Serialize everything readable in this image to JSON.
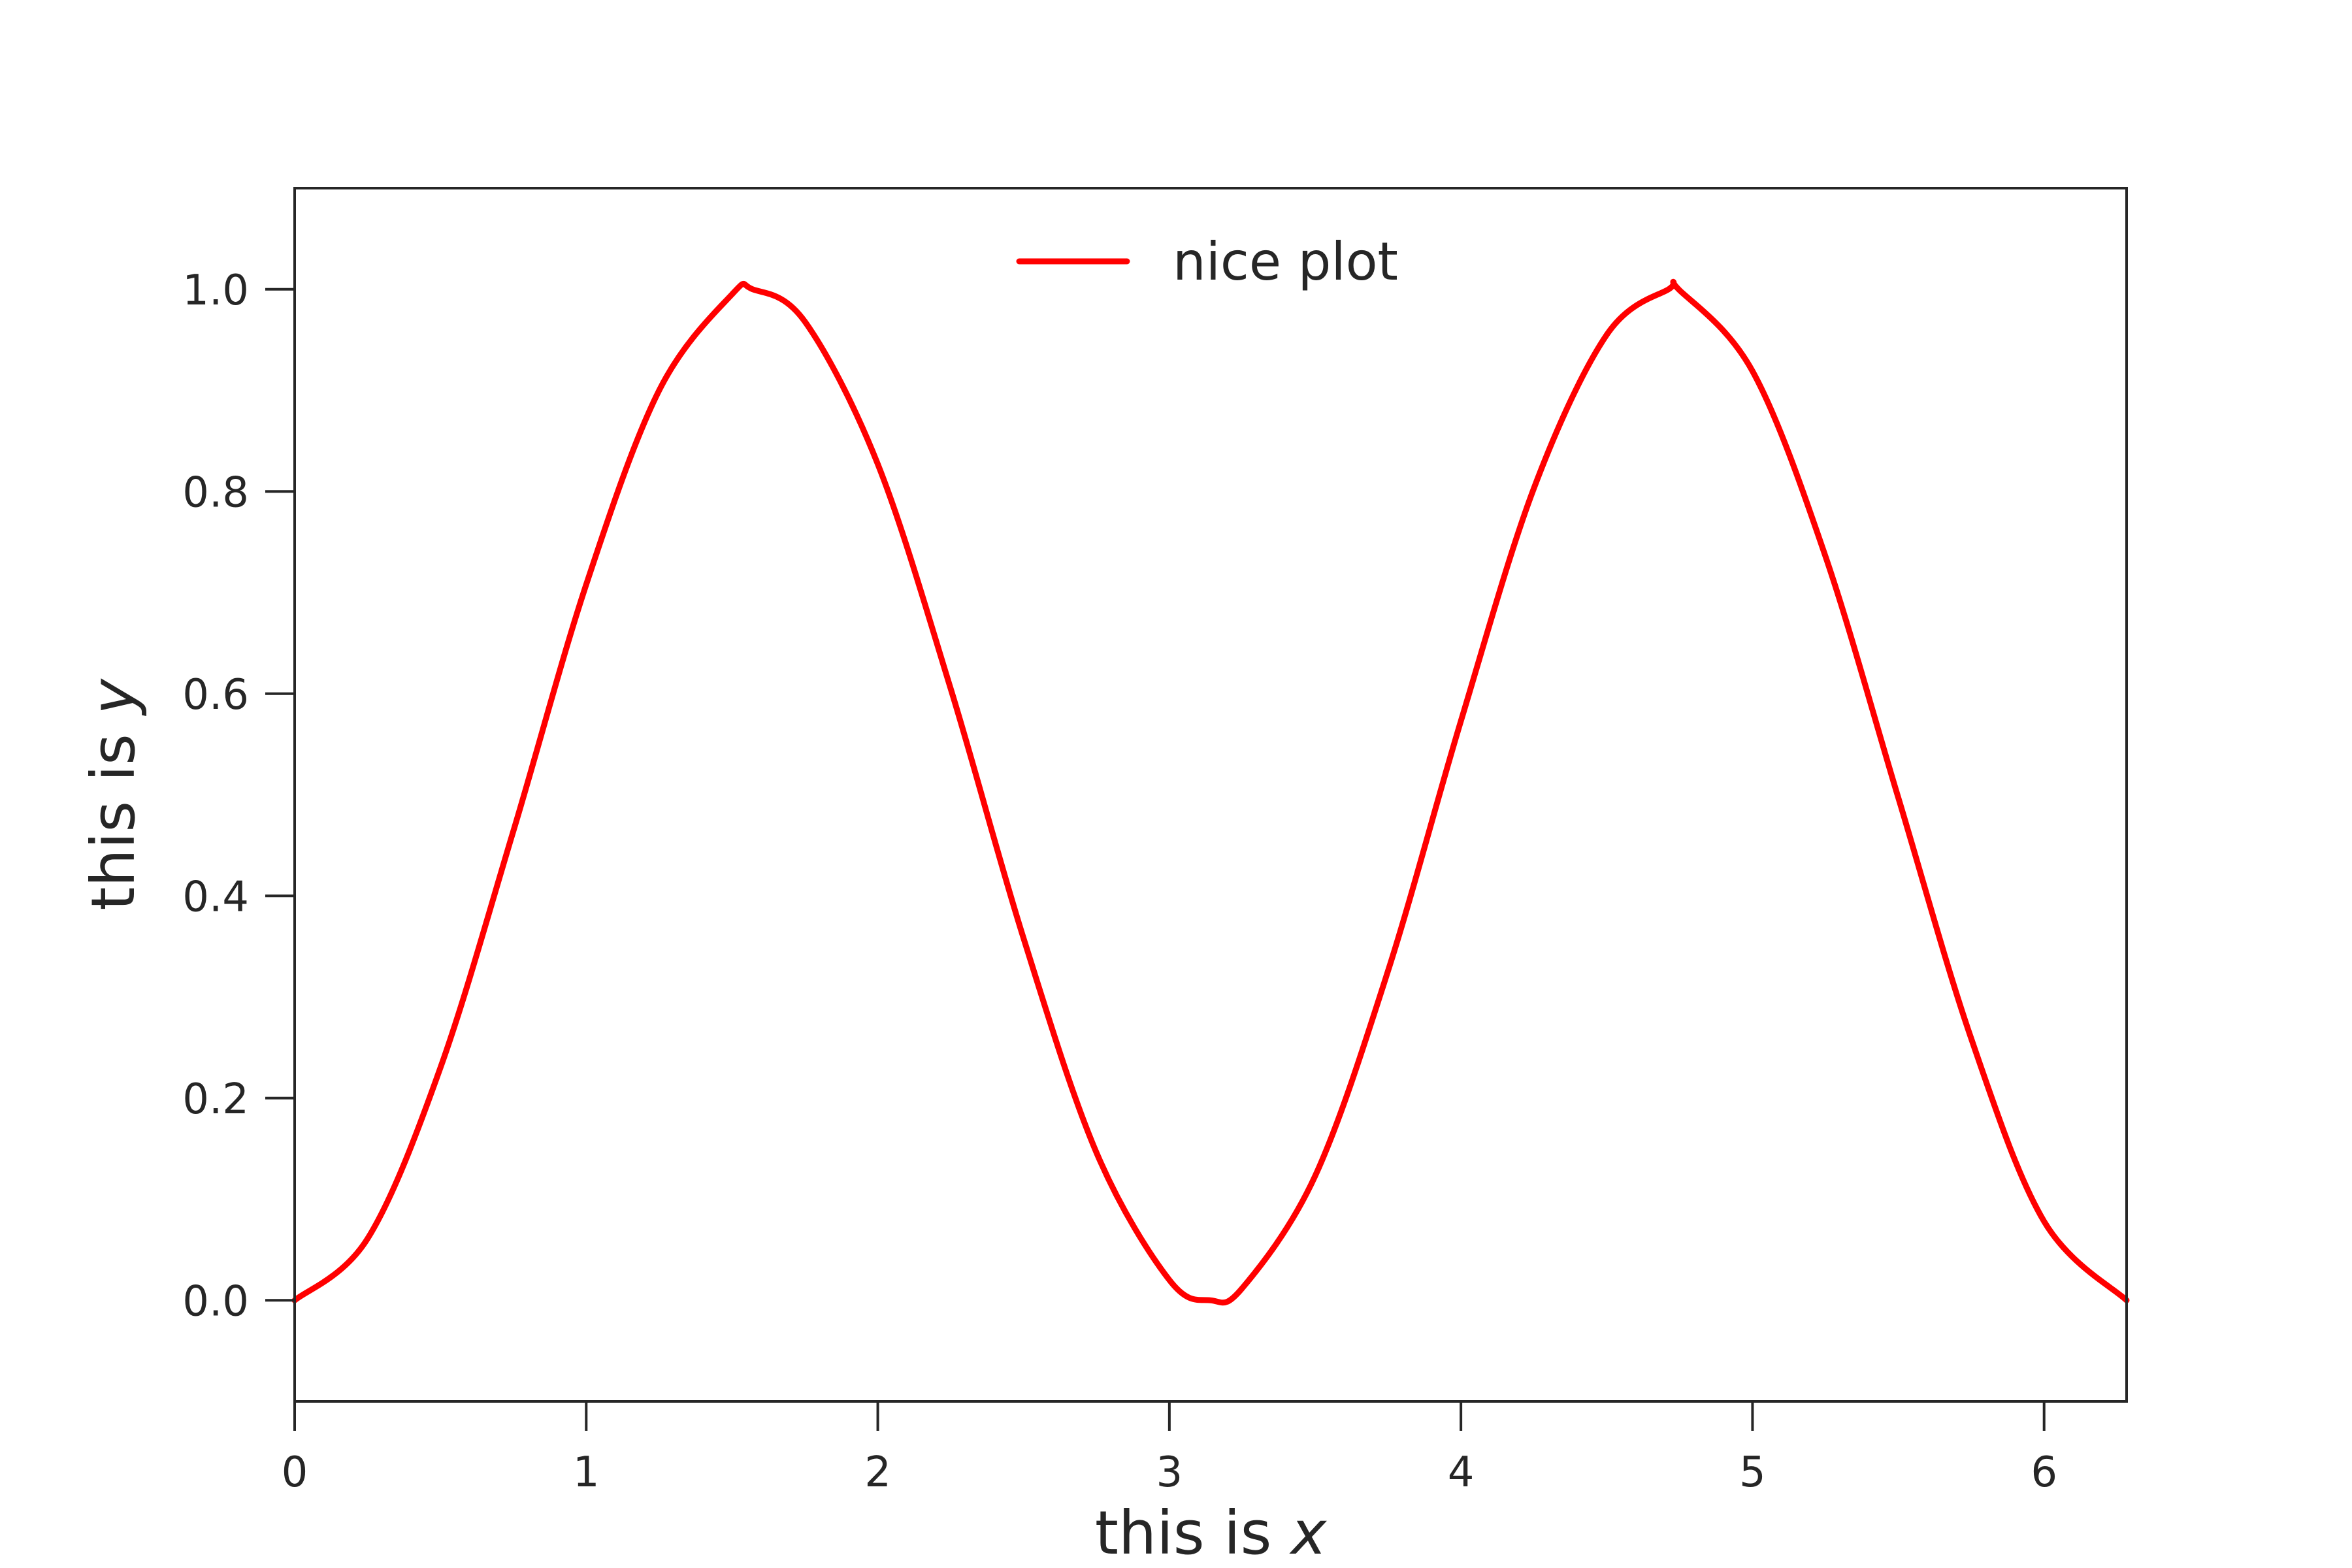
{
  "chart_data": {
    "type": "line",
    "xlabel": {
      "prefix": "this is ",
      "var": "x"
    },
    "ylabel": {
      "prefix": "this is ",
      "var": "y"
    },
    "xlim": [
      0,
      6.283
    ],
    "ylim": [
      -0.1,
      1.1
    ],
    "xticks": [
      "0",
      "1",
      "2",
      "3",
      "4",
      "5",
      "6"
    ],
    "yticks": [
      "0.0",
      "0.2",
      "0.4",
      "0.6",
      "0.8",
      "1.0"
    ],
    "grid": false,
    "legend_position": "upper center",
    "series": [
      {
        "name": "nice plot",
        "color": "#ff0000",
        "x": [
          0,
          0.25,
          0.5,
          0.75,
          1.0,
          1.25,
          1.5,
          1.571,
          1.75,
          2.0,
          2.25,
          2.5,
          2.75,
          3.0,
          3.142,
          3.25,
          3.5,
          3.75,
          4.0,
          4.25,
          4.5,
          4.712,
          4.75,
          5.0,
          5.25,
          5.5,
          5.75,
          6.0,
          6.283
        ],
        "y": [
          0.0,
          0.061,
          0.23,
          0.464,
          0.708,
          0.9,
          0.995,
          1.0,
          0.968,
          0.827,
          0.605,
          0.358,
          0.146,
          0.02,
          0.0,
          0.012,
          0.123,
          0.326,
          0.573,
          0.803,
          0.955,
          1.0,
          0.999,
          0.919,
          0.736,
          0.497,
          0.259,
          0.078,
          0.0
        ]
      }
    ]
  }
}
